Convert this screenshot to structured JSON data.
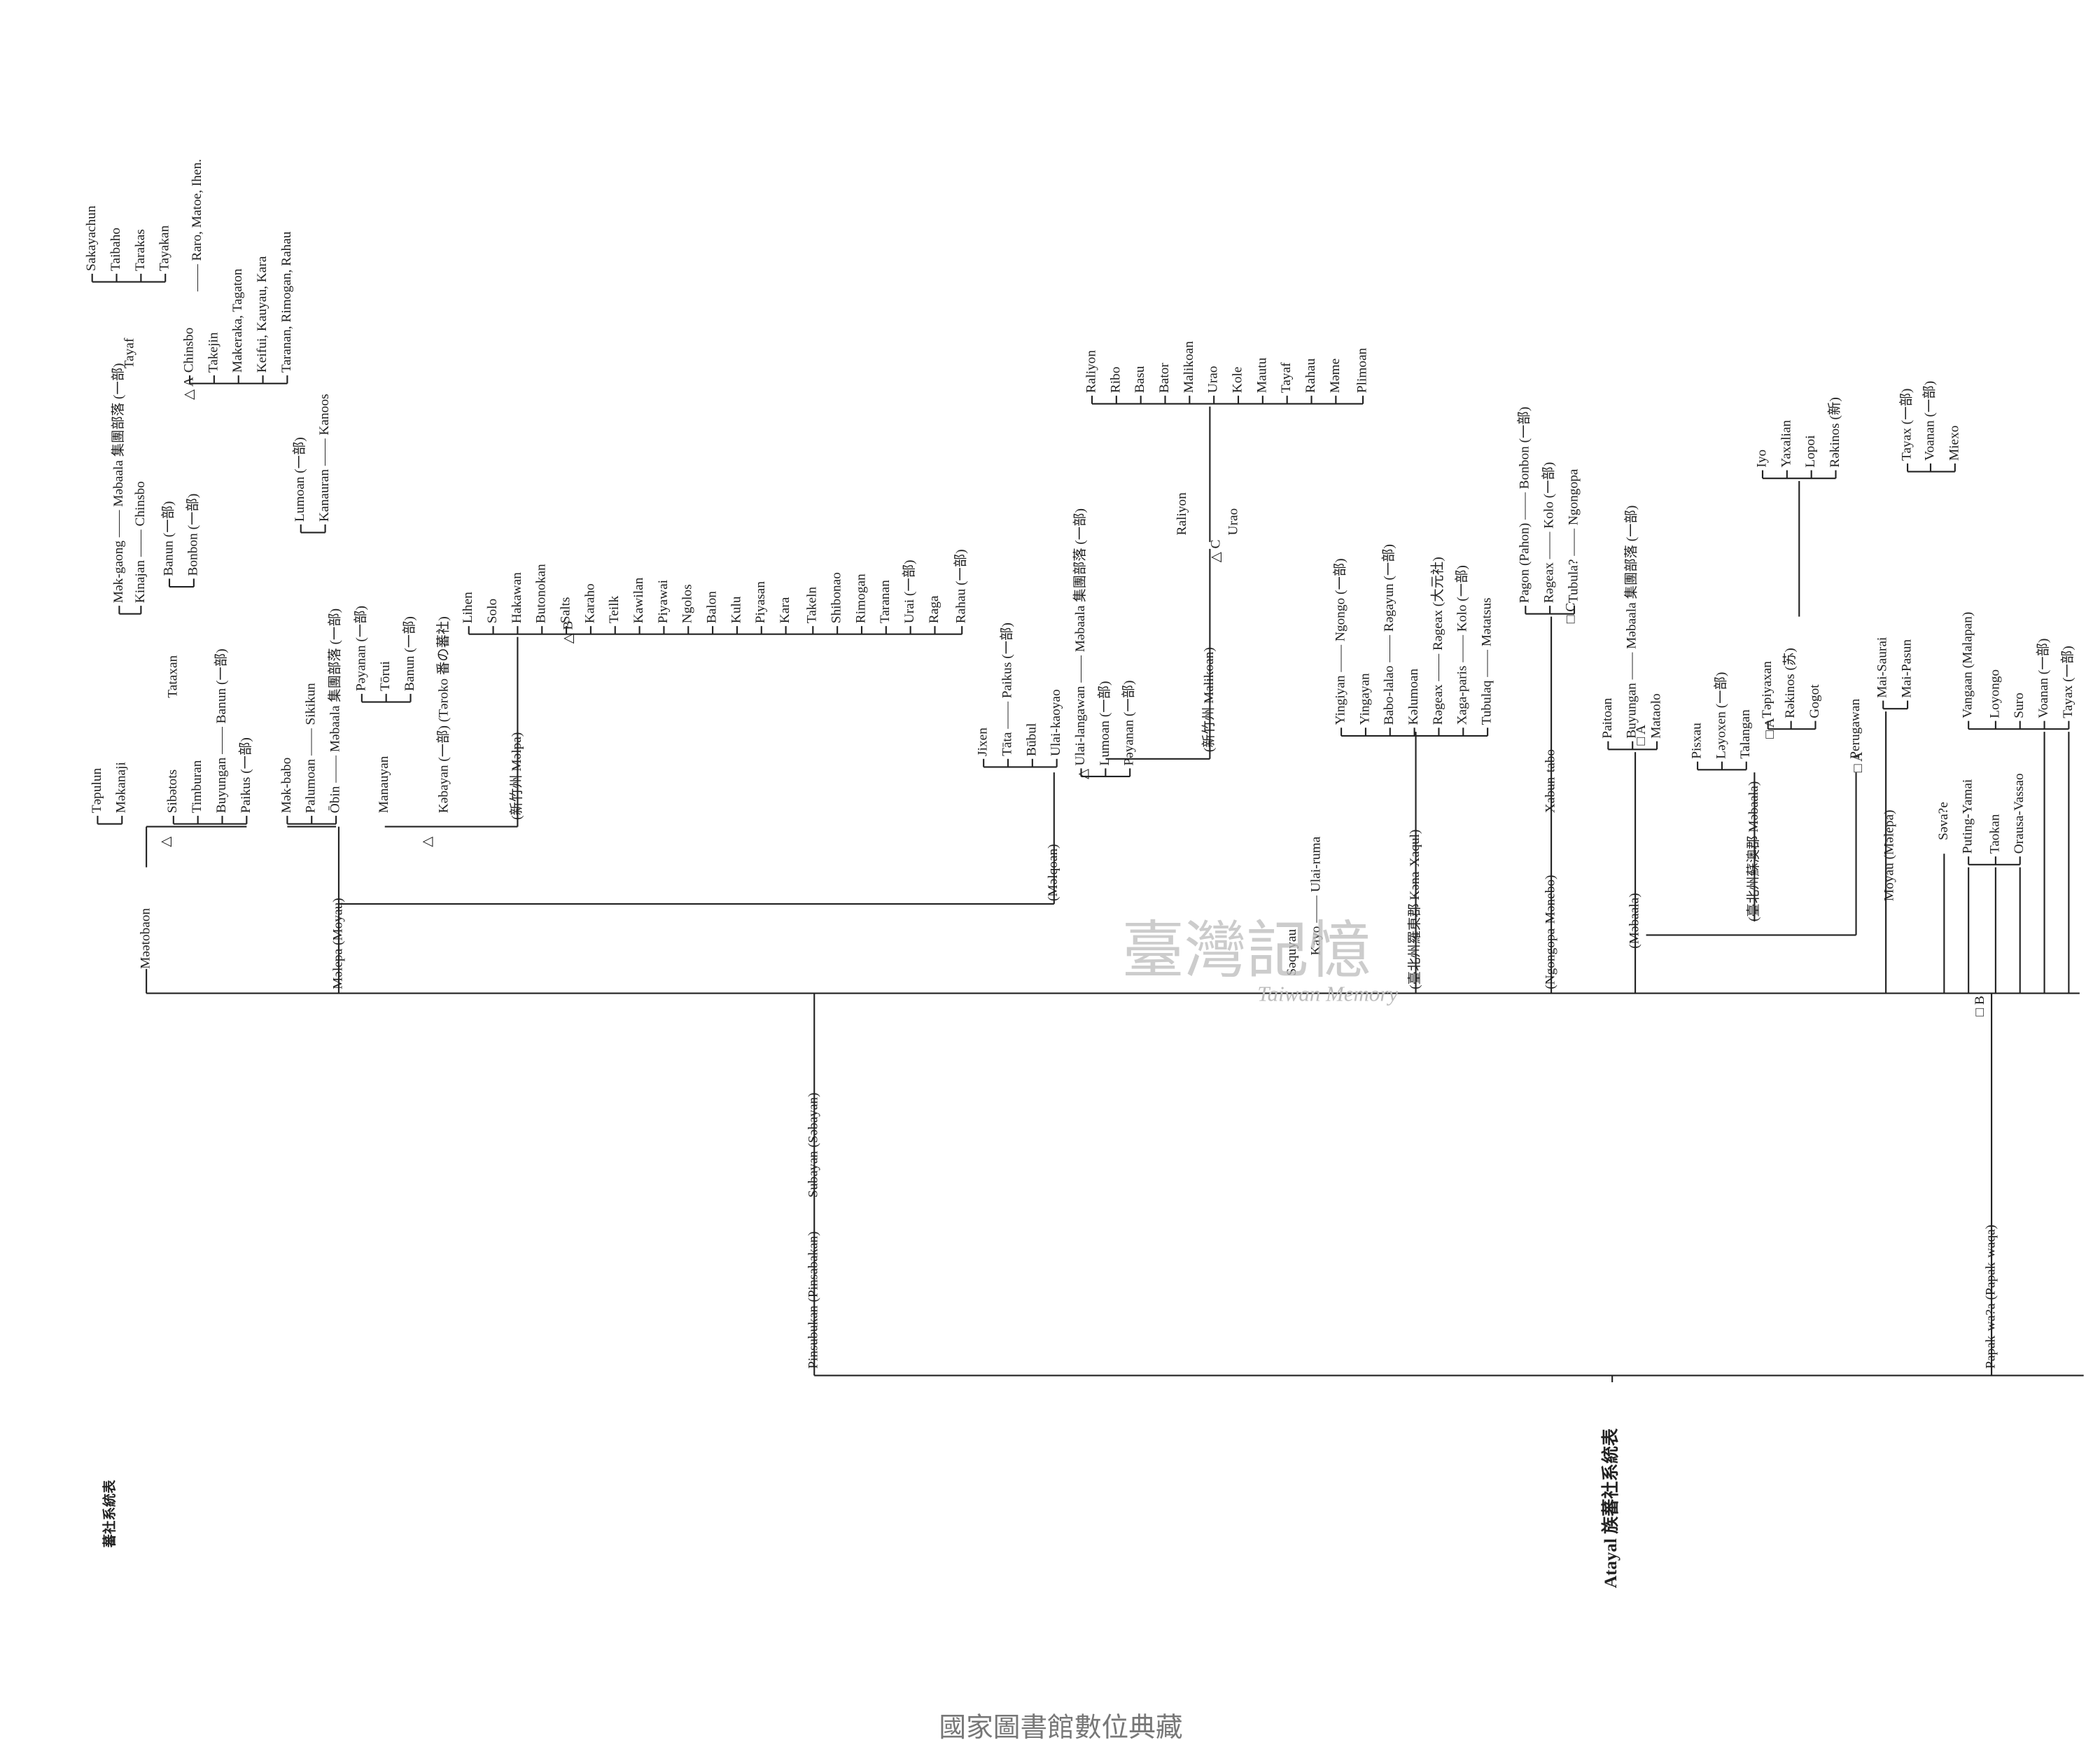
{
  "title": "Atayal 族蕃社系統表",
  "side_title": "蕃社系統表",
  "footer": "國家圖書館數位典藏",
  "watermark": {
    "title": "臺灣記憶",
    "subtitle": "Taiwan Memory"
  },
  "labels": [
    "Mәәtobaon",
    "Tәpulun",
    "Mәkanaji",
    "Mәk-gaong —— Mәbaala 集團部落 (一部)",
    "Kinajan —— Chinsbo",
    "Tayaf",
    "Sakayachun",
    "Taibaho",
    "Tarakas",
    "Tayakan",
    "Chinsbo",
    "Takejin",
    "Makeraka, Tagaton",
    "Keifui, Kauyau, Kara",
    "Taranan, Rimogan, Rahau",
    "—— Raro, Matoe, Ihen.",
    "Sibәtots",
    "Timburan",
    "Buyungan —— Banun (一部)",
    "Paikus (一部)",
    "Tataxan",
    "Banun (一部)",
    "Bonbon (一部)",
    "Mәk-babo",
    "Palumoan —— Sikikun",
    "Ōbin —— Mәbaala 集團部落 (一部)",
    "Lumoan (一部)",
    "Kanauran —— Kanoos",
    "Mәlepa (Moyau)",
    "Manauyan",
    "Pәyanan (一部)",
    "Tōrui",
    "Banun (一部)",
    "Kәbayan (一部) (Tәroko 番の蕃社)",
    "(新竹州 Mәlpa)",
    "Lihen",
    "Solo",
    "Hakawan",
    "Butonokan",
    "Salts",
    "Karaho",
    "Teilk",
    "Kawilan",
    "Piyawai",
    "Ngolos",
    "Balon",
    "Kulu",
    "Piyasan",
    "Kara",
    "Takeln",
    "Shibonao",
    "Rimogan",
    "Taranan",
    "Urai (一部)",
    "Raga",
    "Rahau (一部)",
    "(Mәlqoan)",
    "Jixen",
    "Tāta —— Paikus (一部)",
    "Būbul",
    "Ulai-kaoyao",
    "Ulai-langawan —— Mәbaala 集團部落 (一部)",
    "Lumoan (一部)",
    "Pәyanan (一部)",
    "(新竹州 Malikoan)",
    "Raliyon",
    "Urao",
    "Raliyon",
    "Ribo",
    "Basu",
    "Bator",
    "Malikoan",
    "Urao",
    "Kole",
    "Mautu",
    "Tayaf",
    "Rahau",
    "Mәme",
    "Plimoan",
    "Sәquyau",
    "Kayo —— Ulai-ruma",
    "(臺北州羅東郡 Kәna-Xaqul)",
    "Yingiyan —— Ngongo (一部)",
    "Yingayan",
    "Babo-lalao —— Rәgayun (一部)",
    "Kәlumoan",
    "Rәgeax —— Rәgeax (大元社)",
    "Xaga-paris —— Kolo (一部)",
    "Tubulaq —— Mәtatsus",
    "(Ngongopa-Mәnebo)",
    "Xabun-tabo",
    "Pagon (Pahon) —— Bonbon (一部)",
    "Rәgeax —— Kolo (一部)",
    "Tubula? —— Ngongopa",
    "(Mәbaala)",
    "Paitoan",
    "Buyungan —— Mәbaala 集團部落 (一部)",
    "Mataolo",
    "Pisxau",
    "Lәyoxen (一部)",
    "Talangan",
    "Tәpiyaxan",
    "Rәkinos (苏)",
    "Gogot",
    "Iyo",
    "Yaxalian",
    "Lopoi",
    "Rәkinos (新)",
    "(臺北州蘇澳郡 Mәbaala)",
    "Perugawan",
    "Moyau (Mәlepa)",
    "Mai-Saurai",
    "Mai-Pasun",
    "Tayax (一部)",
    "Voanan (一部)",
    "Miexo",
    "Sәva?e",
    "Puting-Yamai",
    "Vangaan (Malapan)",
    "Taokan",
    "Loyongo",
    "Suro",
    "Orausa-Vassao",
    "Voanan (一部)",
    "Tayax (一部)",
    "Pinsubukan (Pinsabakan) —— Subayan (Sәbayan)",
    "Papak-wa?a (Papak-waqa)",
    "△ A",
    "△ B",
    "△ C",
    "□ C",
    "□ A",
    "□ A",
    "□ A",
    "□ B",
    "△",
    "△",
    "△"
  ]
}
